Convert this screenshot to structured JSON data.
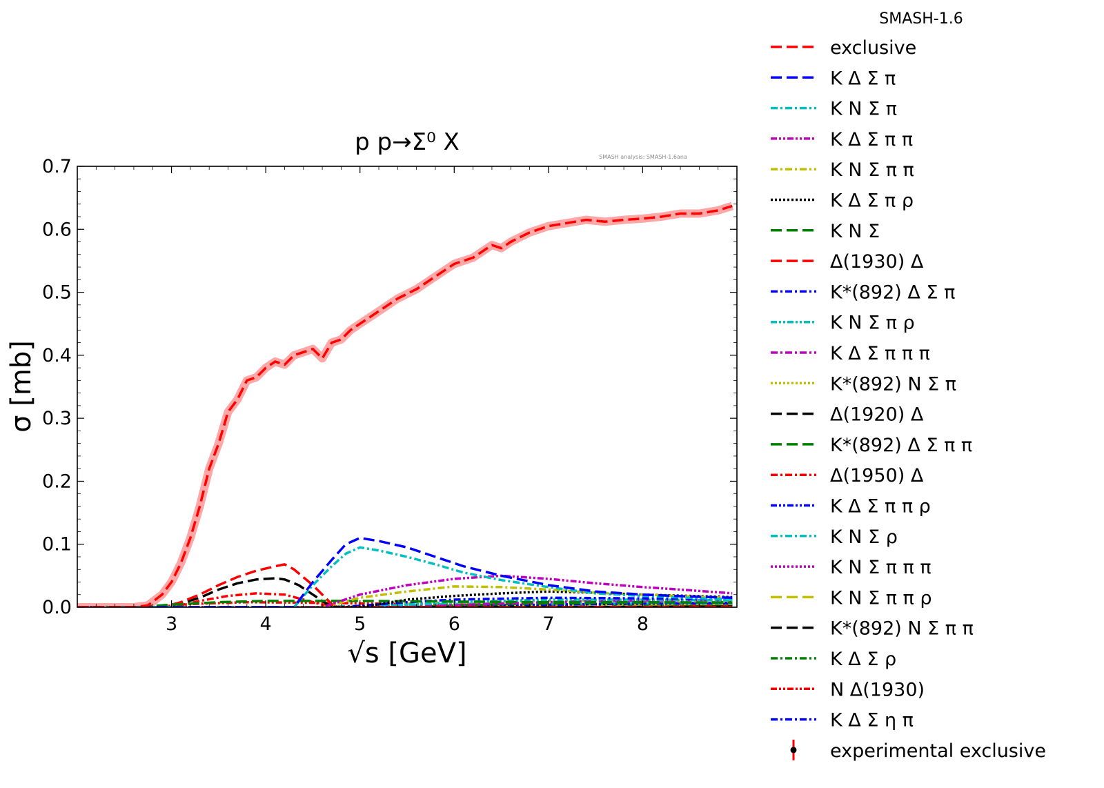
{
  "chart_data": {
    "type": "line",
    "title": "p p→Σ⁰ X",
    "watermark": "SMASH analysis: SMASH-1.6ana",
    "xlabel": "√s [GeV]",
    "ylabel": "σ [mb]",
    "xlim": [
      2.0,
      9.0
    ],
    "ylim": [
      0.0,
      0.7
    ],
    "xticks": [
      3,
      4,
      5,
      6,
      7,
      8
    ],
    "yticks": [
      0.0,
      0.1,
      0.2,
      0.3,
      0.4,
      0.5,
      0.6,
      0.7
    ],
    "grid": false,
    "legend_title": "SMASH-1.6",
    "legend_position": "outside-right",
    "series": [
      {
        "name": "exclusive",
        "color": "#ff0000",
        "dash": "dashed",
        "band": true,
        "x": [
          2.0,
          2.6,
          2.75,
          2.9,
          3.0,
          3.1,
          3.2,
          3.3,
          3.4,
          3.5,
          3.6,
          3.7,
          3.8,
          3.9,
          4.0,
          4.1,
          4.2,
          4.3,
          4.4,
          4.5,
          4.6,
          4.7,
          4.8,
          4.9,
          5.0,
          5.2,
          5.4,
          5.6,
          5.8,
          6.0,
          6.2,
          6.4,
          6.5,
          6.6,
          6.8,
          7.0,
          7.2,
          7.4,
          7.6,
          7.8,
          8.0,
          8.2,
          8.4,
          8.6,
          8.8,
          8.95
        ],
        "y": [
          0.0,
          0.0,
          0.003,
          0.02,
          0.04,
          0.07,
          0.11,
          0.16,
          0.22,
          0.26,
          0.31,
          0.33,
          0.36,
          0.365,
          0.38,
          0.39,
          0.385,
          0.4,
          0.405,
          0.41,
          0.395,
          0.42,
          0.425,
          0.44,
          0.45,
          0.47,
          0.49,
          0.505,
          0.525,
          0.545,
          0.555,
          0.575,
          0.57,
          0.58,
          0.595,
          0.605,
          0.61,
          0.615,
          0.612,
          0.615,
          0.617,
          0.62,
          0.625,
          0.625,
          0.63,
          0.637
        ]
      },
      {
        "name": "K Δ Σ π",
        "color": "#0000ff",
        "dash": "dashed",
        "x": [
          2.0,
          4.3,
          4.5,
          4.7,
          4.85,
          5.0,
          5.2,
          5.5,
          5.8,
          6.1,
          6.5,
          7.0,
          7.5,
          8.0,
          8.5,
          8.95
        ],
        "y": [
          0.0,
          0.0,
          0.04,
          0.075,
          0.1,
          0.11,
          0.105,
          0.095,
          0.08,
          0.065,
          0.05,
          0.035,
          0.025,
          0.02,
          0.017,
          0.015
        ]
      },
      {
        "name": "K N Σ π",
        "color": "#00bfbf",
        "dash": "dashdot",
        "x": [
          2.0,
          4.3,
          4.5,
          4.7,
          4.85,
          5.0,
          5.2,
          5.5,
          5.8,
          6.1,
          6.5,
          7.0,
          7.5,
          8.0,
          8.5,
          8.95
        ],
        "y": [
          0.0,
          0.0,
          0.035,
          0.065,
          0.085,
          0.095,
          0.09,
          0.08,
          0.068,
          0.055,
          0.043,
          0.032,
          0.022,
          0.018,
          0.015,
          0.012
        ]
      },
      {
        "name": "K Δ Σ π π",
        "color": "#bf00bf",
        "dash": "dashdotdot",
        "x": [
          2.0,
          4.6,
          5.0,
          5.5,
          6.0,
          6.5,
          7.0,
          7.5,
          8.0,
          8.5,
          8.95
        ],
        "y": [
          0.0,
          0.0,
          0.02,
          0.035,
          0.045,
          0.05,
          0.045,
          0.038,
          0.032,
          0.027,
          0.022
        ]
      },
      {
        "name": "K N Σ π π",
        "color": "#bfbf00",
        "dash": "dashdot",
        "x": [
          2.0,
          4.6,
          5.0,
          5.5,
          6.0,
          6.5,
          7.0,
          7.5,
          8.0,
          8.5,
          8.95
        ],
        "y": [
          0.0,
          0.0,
          0.015,
          0.025,
          0.033,
          0.032,
          0.028,
          0.023,
          0.02,
          0.017,
          0.015
        ]
      },
      {
        "name": "K Δ Σ π ρ",
        "color": "#000000",
        "dash": "dotted",
        "x": [
          2.0,
          5.0,
          5.5,
          6.0,
          6.5,
          7.0,
          7.5,
          8.0,
          8.5,
          8.95
        ],
        "y": [
          0.0,
          0.0,
          0.012,
          0.018,
          0.022,
          0.025,
          0.023,
          0.02,
          0.018,
          0.016
        ]
      },
      {
        "name": "K N Σ",
        "color": "#008000",
        "dash": "dashed",
        "x": [
          2.0,
          2.6,
          3.0,
          3.5,
          4.0,
          4.5,
          5.0,
          6.0,
          7.0,
          8.0,
          8.95
        ],
        "y": [
          0.0,
          0.0,
          0.004,
          0.008,
          0.01,
          0.01,
          0.01,
          0.009,
          0.008,
          0.008,
          0.007
        ]
      },
      {
        "name": "Δ(1930) Δ",
        "color": "#ff0000",
        "dash": "dashed",
        "x": [
          2.0,
          2.9,
          3.1,
          3.3,
          3.5,
          3.7,
          3.9,
          4.1,
          4.2,
          4.3,
          4.5,
          4.7,
          4.8,
          8.95
        ],
        "y": [
          0.0,
          0.0,
          0.008,
          0.02,
          0.035,
          0.048,
          0.058,
          0.065,
          0.068,
          0.06,
          0.035,
          0.005,
          0.0,
          0.0
        ]
      },
      {
        "name": "K*(892) Δ Σ π",
        "color": "#0000ff",
        "dash": "dashdot",
        "x": [
          2.0,
          4.8,
          5.5,
          6.0,
          7.0,
          8.0,
          8.95
        ],
        "y": [
          0.0,
          0.0,
          0.008,
          0.012,
          0.015,
          0.014,
          0.013
        ]
      },
      {
        "name": "K N Σ π ρ",
        "color": "#00bfbf",
        "dash": "dashdotdot",
        "x": [
          2.0,
          5.0,
          6.0,
          7.0,
          8.0,
          8.95
        ],
        "y": [
          0.0,
          0.0,
          0.008,
          0.012,
          0.012,
          0.011
        ]
      },
      {
        "name": "K Δ Σ π π π",
        "color": "#bf00bf",
        "dash": "dashdot",
        "x": [
          2.0,
          5.5,
          6.5,
          7.5,
          8.95
        ],
        "y": [
          0.0,
          0.0,
          0.006,
          0.01,
          0.012
        ]
      },
      {
        "name": "K*(892) N Σ π",
        "color": "#bfbf00",
        "dash": "dotted",
        "x": [
          2.0,
          4.8,
          5.5,
          6.5,
          7.5,
          8.95
        ],
        "y": [
          0.0,
          0.0,
          0.006,
          0.009,
          0.01,
          0.009
        ]
      },
      {
        "name": "Δ(1920) Δ",
        "color": "#000000",
        "dash": "dashed",
        "x": [
          2.0,
          2.9,
          3.1,
          3.3,
          3.5,
          3.7,
          3.9,
          4.1,
          4.2,
          4.35,
          4.5,
          4.65,
          4.75,
          8.95
        ],
        "y": [
          0.0,
          0.0,
          0.006,
          0.015,
          0.028,
          0.038,
          0.044,
          0.046,
          0.044,
          0.035,
          0.02,
          0.005,
          0.0,
          0.0
        ]
      },
      {
        "name": "K*(892) Δ Σ π π",
        "color": "#008000",
        "dash": "dashed",
        "x": [
          2.0,
          5.5,
          6.5,
          7.5,
          8.95
        ],
        "y": [
          0.0,
          0.0,
          0.005,
          0.007,
          0.008
        ]
      },
      {
        "name": "Δ(1950) Δ",
        "color": "#ff0000",
        "dash": "dashdot",
        "x": [
          2.0,
          3.0,
          3.3,
          3.6,
          3.9,
          4.2,
          4.4,
          4.6,
          4.8,
          8.95
        ],
        "y": [
          0.0,
          0.0,
          0.01,
          0.018,
          0.022,
          0.02,
          0.012,
          0.004,
          0.0,
          0.0
        ]
      },
      {
        "name": "K Δ Σ π π ρ",
        "color": "#0000ff",
        "dash": "dashdotdot",
        "x": [
          2.0,
          6.0,
          7.0,
          8.0,
          8.95
        ],
        "y": [
          0.0,
          0.0,
          0.004,
          0.006,
          0.007
        ]
      },
      {
        "name": "K N Σ ρ",
        "color": "#00bfbf",
        "dash": "dashdot",
        "x": [
          2.0,
          4.5,
          5.5,
          6.5,
          7.5,
          8.95
        ],
        "y": [
          0.0,
          0.0,
          0.004,
          0.006,
          0.006,
          0.006
        ]
      },
      {
        "name": "K N Σ π π π",
        "color": "#bf00bf",
        "dash": "dotted",
        "x": [
          2.0,
          5.5,
          6.5,
          7.5,
          8.95
        ],
        "y": [
          0.0,
          0.0,
          0.003,
          0.005,
          0.006
        ]
      },
      {
        "name": "K N Σ π π ρ",
        "color": "#bfbf00",
        "dash": "dashed",
        "x": [
          2.0,
          5.5,
          6.5,
          7.5,
          8.95
        ],
        "y": [
          0.0,
          0.0,
          0.003,
          0.004,
          0.005
        ]
      },
      {
        "name": "K*(892) N Σ π π",
        "color": "#000000",
        "dash": "dashed",
        "x": [
          2.0,
          5.5,
          6.5,
          7.5,
          8.95
        ],
        "y": [
          0.0,
          0.0,
          0.002,
          0.003,
          0.004
        ]
      },
      {
        "name": "K Δ Σ ρ",
        "color": "#008000",
        "dash": "dashdot",
        "x": [
          2.0,
          4.5,
          5.5,
          6.5,
          7.5,
          8.95
        ],
        "y": [
          0.0,
          0.0,
          0.003,
          0.004,
          0.004,
          0.004
        ]
      },
      {
        "name": "N Δ(1930)",
        "color": "#ff0000",
        "dash": "dashdotdot",
        "x": [
          2.0,
          2.8,
          3.2,
          3.8,
          4.5,
          5.5,
          6.5,
          8.95
        ],
        "y": [
          0.0,
          0.0,
          0.005,
          0.008,
          0.007,
          0.005,
          0.004,
          0.003
        ]
      },
      {
        "name": "K Δ Σ η π",
        "color": "#0000ff",
        "dash": "dashdot",
        "x": [
          2.0,
          5.0,
          6.0,
          7.0,
          8.0,
          8.95
        ],
        "y": [
          0.0,
          0.0,
          0.002,
          0.003,
          0.004,
          0.004
        ]
      }
    ],
    "experimental": {
      "name": "experimental exclusive",
      "color": "#ff0000",
      "points": []
    }
  }
}
